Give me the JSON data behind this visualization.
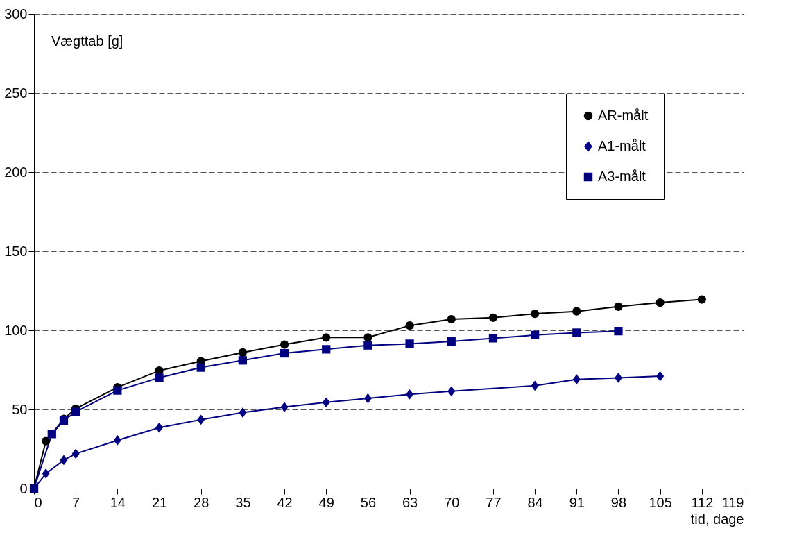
{
  "chart_data": {
    "type": "line",
    "xlabel": "tid, dage",
    "ylabel": "Vægttab [g]",
    "xlim": [
      0,
      119
    ],
    "xticks": [
      0,
      7,
      14,
      21,
      28,
      35,
      42,
      49,
      56,
      63,
      70,
      77,
      84,
      91,
      98,
      105,
      112,
      119
    ],
    "ylim": [
      0,
      300
    ],
    "yticks": [
      0,
      50,
      100,
      150,
      200,
      250,
      300
    ],
    "grid": "y",
    "legend": "top right",
    "line_style": "solid",
    "series": [
      {
        "name": "AR-målt",
        "color": "#000000",
        "marker": "circle",
        "x": [
          0,
          2,
          5,
          7,
          14,
          21,
          28,
          35,
          42,
          49,
          56,
          63,
          70,
          77,
          84,
          91,
          98,
          105,
          112
        ],
        "values": [
          0,
          30,
          44,
          50.5,
          64,
          74.5,
          80.5,
          86,
          91,
          95.5,
          95.5,
          103,
          107,
          108,
          110.5,
          112,
          115,
          117.5,
          119.5
        ]
      },
      {
        "name": "A1-målt",
        "color": "#000080",
        "marker": "diamond",
        "x": [
          0,
          2,
          5,
          7,
          14,
          21,
          28,
          35,
          42,
          49,
          56,
          63,
          70,
          84,
          91,
          98,
          105
        ],
        "values": [
          0,
          9.5,
          18,
          22,
          30.5,
          38.5,
          43.5,
          48,
          51.5,
          54.5,
          57,
          59.5,
          61.5,
          65,
          69,
          70,
          71
        ]
      },
      {
        "name": "A3-målt",
        "color": "#000080",
        "marker": "square",
        "x": [
          0,
          3,
          5,
          7,
          14,
          21,
          28,
          35,
          42,
          49,
          56,
          63,
          70,
          77,
          84,
          91,
          98
        ],
        "values": [
          0,
          34.5,
          43,
          48.5,
          62,
          70,
          76.5,
          81,
          85.5,
          88,
          90.5,
          91.5,
          93,
          95,
          97,
          98.5,
          99.5
        ]
      }
    ]
  }
}
